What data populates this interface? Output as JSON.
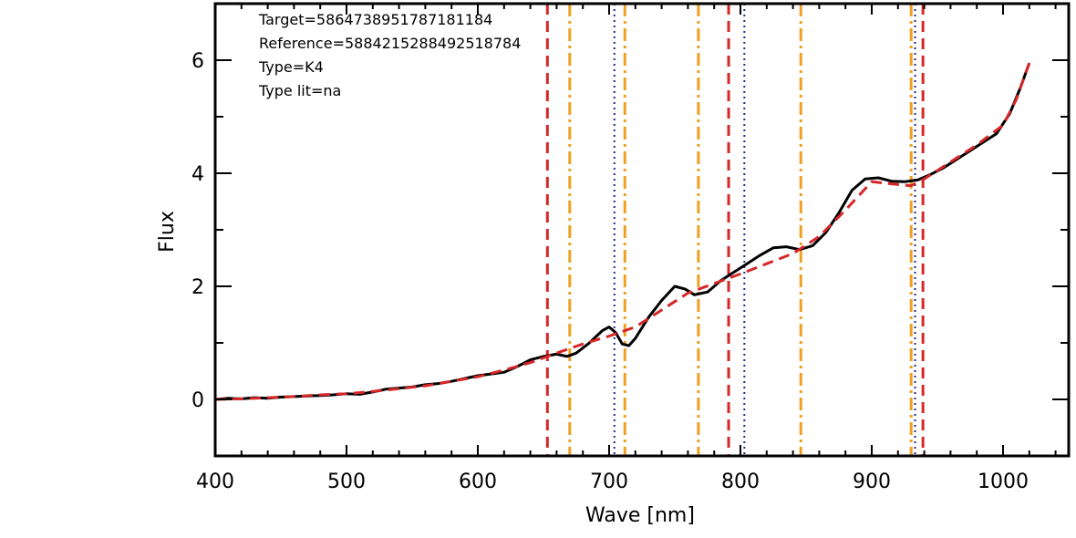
{
  "chart_data": {
    "type": "line",
    "xlabel": "Wave [nm]",
    "ylabel": "Flux",
    "xlim": [
      400,
      1050
    ],
    "ylim": [
      -1,
      7
    ],
    "xticks": [
      "400",
      "500",
      "600",
      "700",
      "800",
      "900",
      "1000"
    ],
    "yticks": [
      "0",
      "2",
      "4",
      "6"
    ],
    "annotations": [
      "Target=586473895178718118 4",
      "Reference=588421528849251878 4",
      "Type=K4",
      "Type lit=na"
    ],
    "annotation_lines": [
      "Target=5864738951787181184",
      "Reference=5884215288492518784",
      "Type=K4",
      "Type lit=na"
    ],
    "series": [
      {
        "color": "#000000",
        "style": "solid",
        "points": [
          [
            400,
            0.0
          ],
          [
            410,
            0.02
          ],
          [
            420,
            0.01
          ],
          [
            430,
            0.03
          ],
          [
            440,
            0.02
          ],
          [
            450,
            0.04
          ],
          [
            460,
            0.05
          ],
          [
            470,
            0.06
          ],
          [
            480,
            0.07
          ],
          [
            490,
            0.08
          ],
          [
            500,
            0.1
          ],
          [
            510,
            0.09
          ],
          [
            520,
            0.13
          ],
          [
            530,
            0.18
          ],
          [
            540,
            0.2
          ],
          [
            550,
            0.22
          ],
          [
            560,
            0.26
          ],
          [
            570,
            0.28
          ],
          [
            580,
            0.32
          ],
          [
            590,
            0.37
          ],
          [
            600,
            0.42
          ],
          [
            610,
            0.45
          ],
          [
            620,
            0.48
          ],
          [
            630,
            0.58
          ],
          [
            640,
            0.7
          ],
          [
            650,
            0.76
          ],
          [
            660,
            0.8
          ],
          [
            668,
            0.76
          ],
          [
            675,
            0.82
          ],
          [
            685,
            1.0
          ],
          [
            695,
            1.22
          ],
          [
            700,
            1.28
          ],
          [
            705,
            1.18
          ],
          [
            710,
            0.98
          ],
          [
            715,
            0.95
          ],
          [
            720,
            1.08
          ],
          [
            730,
            1.45
          ],
          [
            740,
            1.75
          ],
          [
            750,
            2.0
          ],
          [
            758,
            1.95
          ],
          [
            765,
            1.85
          ],
          [
            775,
            1.9
          ],
          [
            785,
            2.1
          ],
          [
            795,
            2.25
          ],
          [
            805,
            2.4
          ],
          [
            815,
            2.55
          ],
          [
            825,
            2.68
          ],
          [
            835,
            2.7
          ],
          [
            845,
            2.65
          ],
          [
            855,
            2.72
          ],
          [
            865,
            2.95
          ],
          [
            875,
            3.3
          ],
          [
            885,
            3.7
          ],
          [
            895,
            3.9
          ],
          [
            905,
            3.92
          ],
          [
            915,
            3.86
          ],
          [
            925,
            3.85
          ],
          [
            935,
            3.88
          ],
          [
            945,
            3.98
          ],
          [
            955,
            4.1
          ],
          [
            965,
            4.25
          ],
          [
            975,
            4.4
          ],
          [
            985,
            4.55
          ],
          [
            995,
            4.7
          ],
          [
            1005,
            5.05
          ],
          [
            1013,
            5.5
          ],
          [
            1020,
            5.95
          ]
        ]
      },
      {
        "color": "#d62728",
        "style": "dashed",
        "points": [
          [
            400,
            0.0
          ],
          [
            420,
            0.01
          ],
          [
            440,
            0.03
          ],
          [
            460,
            0.05
          ],
          [
            480,
            0.08
          ],
          [
            500,
            0.1
          ],
          [
            520,
            0.14
          ],
          [
            540,
            0.19
          ],
          [
            560,
            0.24
          ],
          [
            580,
            0.32
          ],
          [
            600,
            0.4
          ],
          [
            620,
            0.52
          ],
          [
            640,
            0.65
          ],
          [
            660,
            0.82
          ],
          [
            680,
            0.98
          ],
          [
            700,
            1.12
          ],
          [
            720,
            1.28
          ],
          [
            740,
            1.58
          ],
          [
            760,
            1.88
          ],
          [
            780,
            2.05
          ],
          [
            800,
            2.22
          ],
          [
            820,
            2.4
          ],
          [
            840,
            2.58
          ],
          [
            860,
            2.88
          ],
          [
            880,
            3.35
          ],
          [
            900,
            3.85
          ],
          [
            920,
            3.8
          ],
          [
            930,
            3.78
          ],
          [
            940,
            3.9
          ],
          [
            960,
            4.2
          ],
          [
            980,
            4.5
          ],
          [
            1000,
            4.85
          ],
          [
            1010,
            5.3
          ],
          [
            1020,
            5.95
          ]
        ]
      }
    ],
    "vlines": [
      {
        "x": 653,
        "color": "#d62728",
        "style": "dashed"
      },
      {
        "x": 670,
        "color": "#f0a020",
        "style": "dashdot"
      },
      {
        "x": 704,
        "color": "#1f2a8a",
        "style": "dotted"
      },
      {
        "x": 712,
        "color": "#f0a020",
        "style": "dashdot"
      },
      {
        "x": 768,
        "color": "#f0a020",
        "style": "dashdot"
      },
      {
        "x": 791,
        "color": "#d62728",
        "style": "dashed"
      },
      {
        "x": 803,
        "color": "#1f2a8a",
        "style": "dotted"
      },
      {
        "x": 846,
        "color": "#f0a020",
        "style": "dashdot"
      },
      {
        "x": 930,
        "color": "#f0a020",
        "style": "dashdot"
      },
      {
        "x": 933,
        "color": "#1f2a8a",
        "style": "dotted"
      },
      {
        "x": 939,
        "color": "#d62728",
        "style": "dashed"
      }
    ]
  }
}
